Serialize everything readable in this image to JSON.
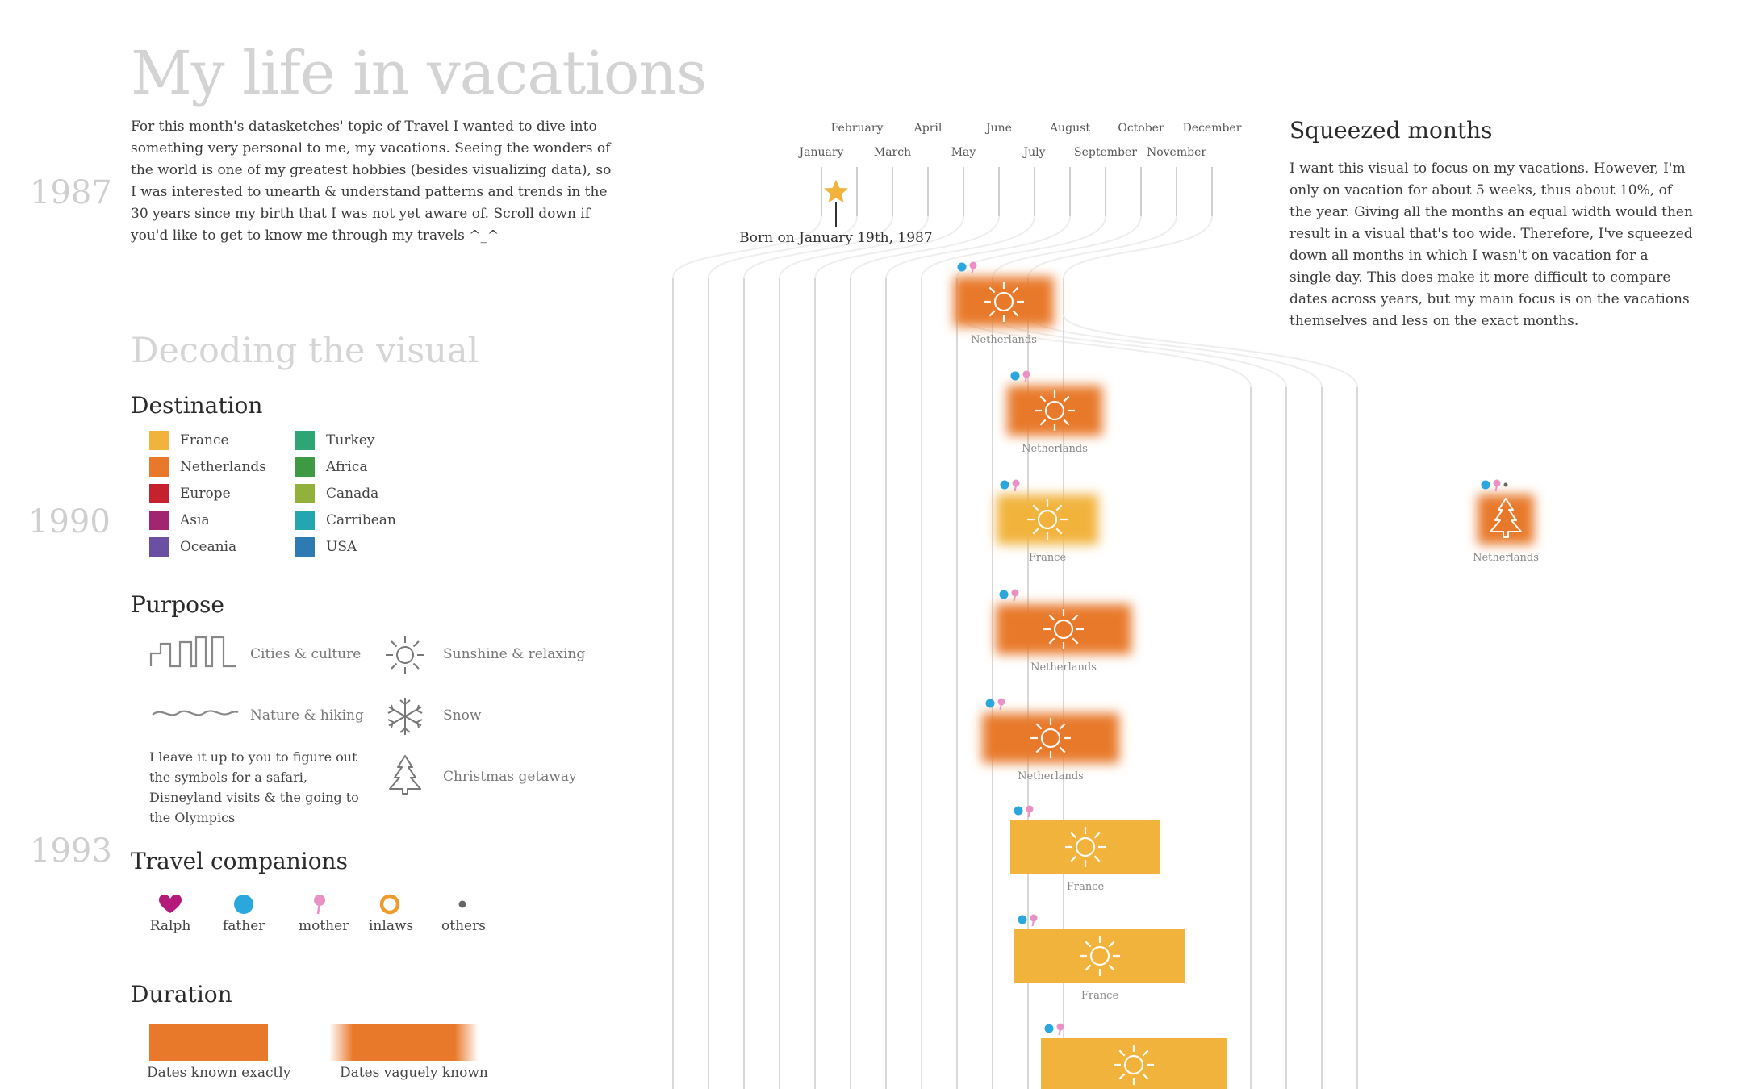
{
  "page": {
    "title": "My life in vacations",
    "intro": "For this month's datasketches' topic of Travel I wanted to dive into something very personal to me, my vacations. Seeing the wonders of the world is one of my greatest hobbies (besides visualizing data), so I was interested to unearth & understand patterns and trends in the 30 years since my birth that I was not yet aware of. Scroll down if you'd like to get to know me through my travels ^_^"
  },
  "years": [
    "1987",
    "1990",
    "1993"
  ],
  "decoding": {
    "title": "Decoding the visual",
    "destination": {
      "title": "Destination",
      "items": [
        {
          "label": "France",
          "color": "#F2B33D"
        },
        {
          "label": "Netherlands",
          "color": "#E8792B"
        },
        {
          "label": "Europe",
          "color": "#C5212E"
        },
        {
          "label": "Asia",
          "color": "#A1266F"
        },
        {
          "label": "Oceania",
          "color": "#6B4FA2"
        },
        {
          "label": "Turkey",
          "color": "#2DA574"
        },
        {
          "label": "Africa",
          "color": "#3E9A42"
        },
        {
          "label": "Canada",
          "color": "#91B13A"
        },
        {
          "label": "Carribean",
          "color": "#24A6B0"
        },
        {
          "label": "USA",
          "color": "#2E7BB4"
        }
      ]
    },
    "purpose": {
      "title": "Purpose",
      "items": [
        {
          "label": "Cities & culture",
          "icon": "cities-icon"
        },
        {
          "label": "Sunshine & relaxing",
          "icon": "sun-icon"
        },
        {
          "label": "Nature & hiking",
          "icon": "wave-icon"
        },
        {
          "label": "Snow",
          "icon": "snowflake-icon"
        },
        {
          "label": "Christmas getaway",
          "icon": "tree-icon"
        }
      ],
      "note": "I leave it up to you to figure out the symbols for a safari, Disneyland visits & the going to the Olympics"
    },
    "companions": {
      "title": "Travel companions",
      "items": [
        {
          "label": "Ralph",
          "icon": "heart-icon",
          "color": "#B5197A"
        },
        {
          "label": "father",
          "icon": "dot-icon",
          "color": "#2AA7DC"
        },
        {
          "label": "mother",
          "icon": "pin-icon",
          "color": "#E991C4"
        },
        {
          "label": "inlaws",
          "icon": "ring-icon",
          "color": "#EE9A2C"
        },
        {
          "label": "others",
          "icon": "small-dot-icon",
          "color": "#666666"
        }
      ]
    },
    "duration": {
      "title": "Duration",
      "exact_label": "Dates known exactly",
      "vague_label": "Dates vaguely known"
    }
  },
  "squeezed": {
    "title": "Squeezed months",
    "text": "I want this visual to focus on my vacations. However, I'm only on vacation for about 5 weeks, thus about 10%, of the year. Giving all the months an equal width would then result in a visual that's too wide. Therefore, I've squeezed down all months in which I wasn't on vacation for a single day. This does make it more difficult to compare dates across years, but my main focus is on the vacations themselves and less on the exact months."
  },
  "timeline": {
    "months": [
      "January",
      "February",
      "March",
      "April",
      "May",
      "June",
      "July",
      "August",
      "September",
      "October",
      "November",
      "December"
    ],
    "born_label": "Born on January 19th, 1987",
    "vacations": [
      {
        "destination": "Netherlands",
        "color": "#E8792B",
        "purpose": "sun",
        "vague": true,
        "companions": [
          "father",
          "mother"
        ]
      },
      {
        "destination": "Netherlands",
        "color": "#E8792B",
        "purpose": "sun",
        "vague": true,
        "companions": [
          "father",
          "mother"
        ]
      },
      {
        "destination": "France",
        "color": "#F2B33D",
        "purpose": "sun",
        "vague": true,
        "companions": [
          "father",
          "mother"
        ]
      },
      {
        "destination": "Netherlands",
        "color": "#E8792B",
        "purpose": "tree",
        "vague": true,
        "companions": [
          "father",
          "mother",
          "others"
        ]
      },
      {
        "destination": "Netherlands",
        "color": "#E8792B",
        "purpose": "sun",
        "vague": true,
        "companions": [
          "father",
          "mother"
        ]
      },
      {
        "destination": "Netherlands",
        "color": "#E8792B",
        "purpose": "sun",
        "vague": true,
        "companions": [
          "father",
          "mother"
        ]
      },
      {
        "destination": "France",
        "color": "#F2B33D",
        "purpose": "sun",
        "vague": false,
        "companions": [
          "father",
          "mother"
        ]
      },
      {
        "destination": "France",
        "color": "#F2B33D",
        "purpose": "sun",
        "vague": false,
        "companions": [
          "father",
          "mother"
        ]
      },
      {
        "destination": "",
        "color": "#F2B33D",
        "purpose": "sun",
        "vague": false,
        "companions": [
          "father",
          "mother"
        ]
      }
    ]
  }
}
